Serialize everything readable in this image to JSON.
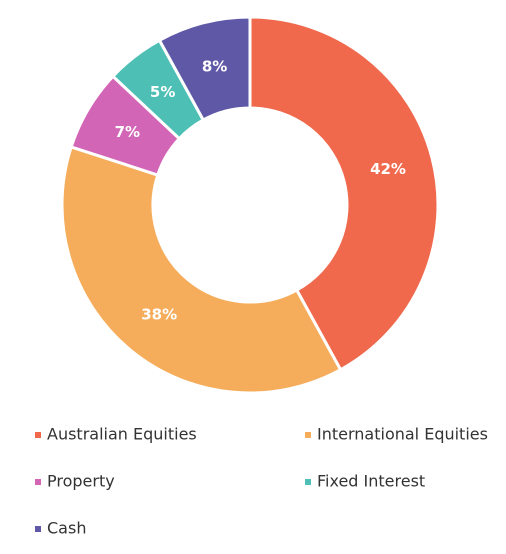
{
  "chart_data": {
    "type": "donut",
    "categories": [
      "Australian Equities",
      "International Equities",
      "Property",
      "Fixed Interest",
      "Cash"
    ],
    "values": [
      42,
      38,
      7,
      5,
      8
    ],
    "value_labels": [
      "42%",
      "38%",
      "7%",
      "5%",
      "8%"
    ],
    "colors": [
      "#f0694d",
      "#f5ad5b",
      "#d265b5",
      "#4dbfb4",
      "#5f58a7"
    ],
    "legend": "bottom"
  }
}
